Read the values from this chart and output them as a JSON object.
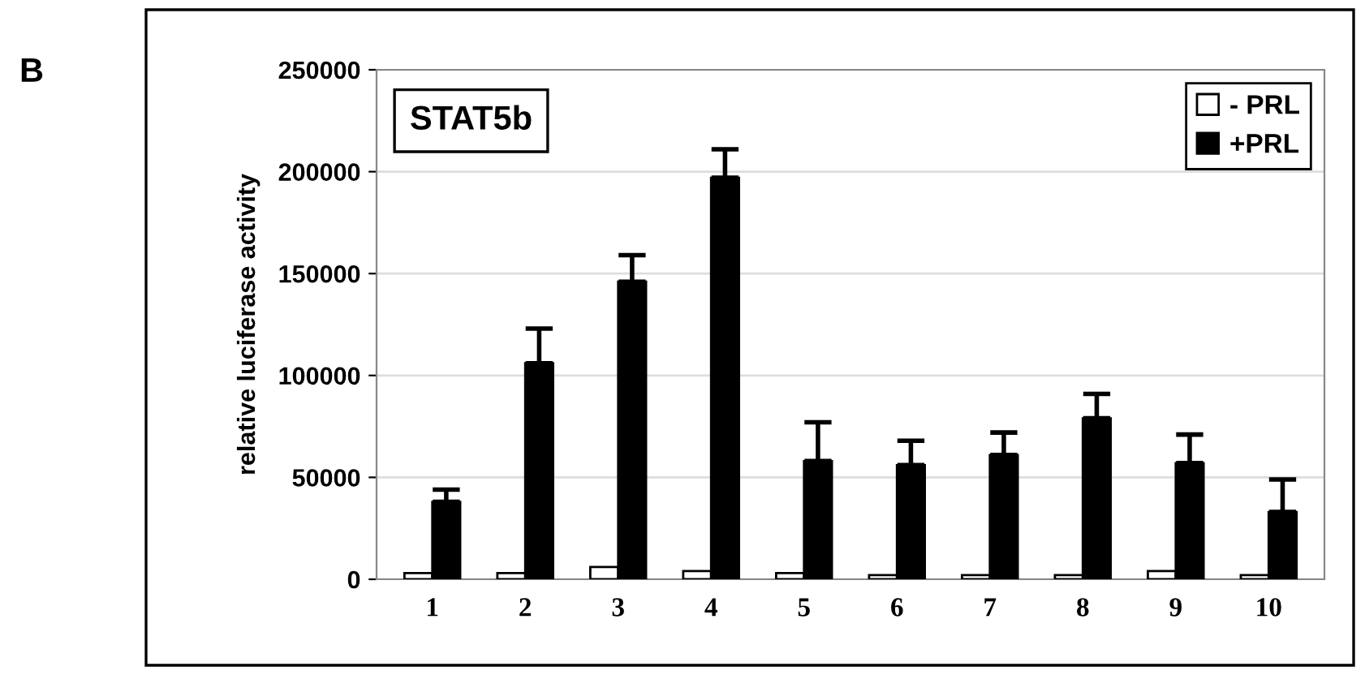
{
  "chart_data": {
    "type": "bar",
    "title": "STAT5b",
    "ylabel": "relative luciferase activity",
    "annotations": [
      "B"
    ],
    "categories": [
      "1",
      "2",
      "3",
      "4",
      "5",
      "6",
      "7",
      "8",
      "9",
      "10"
    ],
    "series": [
      {
        "name": "- PRL",
        "color": "#ffffff",
        "values": [
          3000,
          3000,
          6000,
          4000,
          3000,
          2000,
          2000,
          2000,
          4000,
          2000
        ]
      },
      {
        "name": "+PRL",
        "color": "#000000",
        "values": [
          38000,
          106000,
          146000,
          197000,
          58000,
          56000,
          61000,
          79000,
          57000,
          33000
        ],
        "errors": [
          [
            38000,
            44000
          ],
          [
            106000,
            123000
          ],
          [
            146000,
            159000
          ],
          [
            197000,
            211000
          ],
          [
            58000,
            77000
          ],
          [
            56000,
            68000
          ],
          [
            61000,
            72000
          ],
          [
            79000,
            91000
          ],
          [
            57000,
            71000
          ],
          [
            33000,
            49000
          ]
        ]
      }
    ],
    "ylim": [
      0,
      250000
    ],
    "yticks": [
      0,
      50000,
      100000,
      150000,
      200000,
      250000
    ],
    "grid": "y",
    "legend": "top right"
  }
}
